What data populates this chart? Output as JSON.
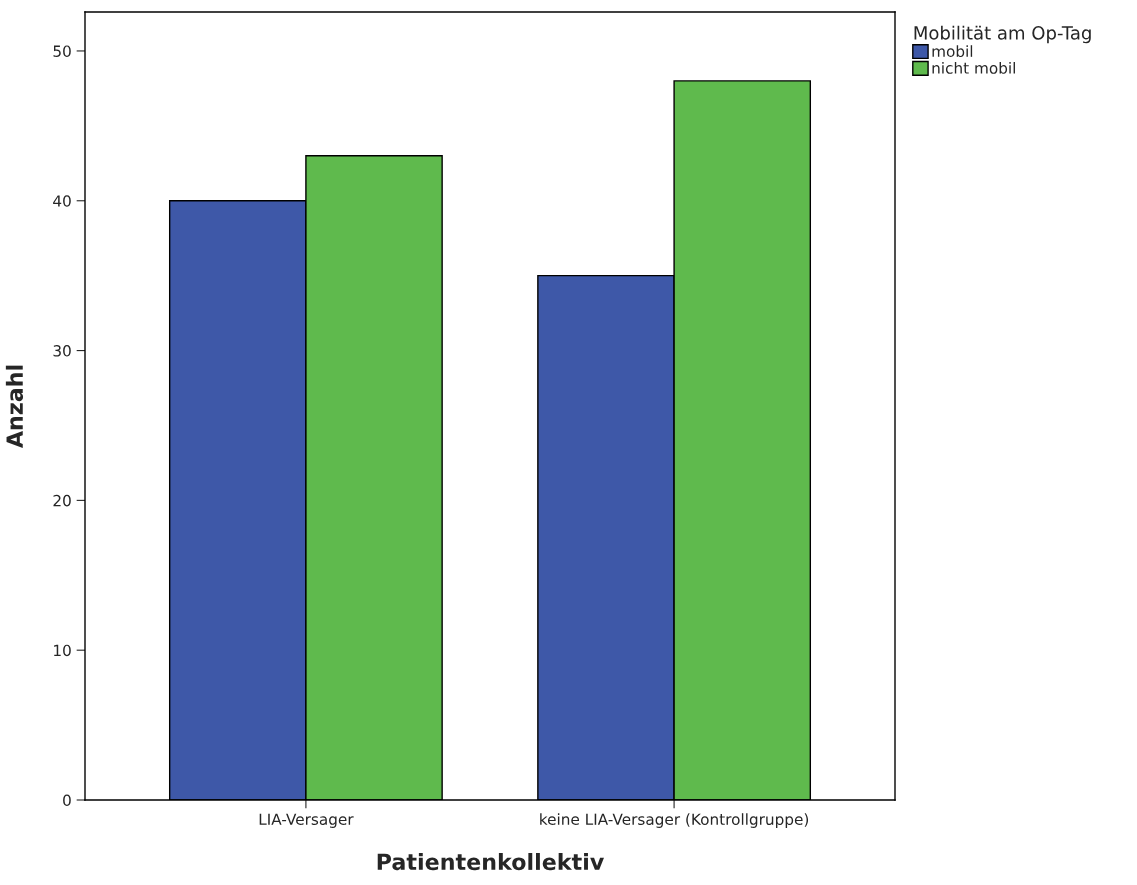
{
  "chart_data": {
    "type": "bar",
    "xlabel": "Patientenkollektiv",
    "ylabel": "Anzahl",
    "legend_title": "Mobilität am Op-Tag",
    "categories": [
      "LIA-Versager",
      "keine LIA-Versager (Kontrollgruppe)"
    ],
    "series": [
      {
        "name": "mobil",
        "color": "#3e58a8",
        "values": [
          40,
          35
        ]
      },
      {
        "name": "nicht mobil",
        "color": "#5fba4d",
        "values": [
          43,
          48
        ]
      }
    ],
    "ylim": [
      0,
      52.6
    ],
    "yticks": [
      0,
      10,
      20,
      30,
      40,
      50
    ],
    "grid": false,
    "legend": "top right"
  }
}
